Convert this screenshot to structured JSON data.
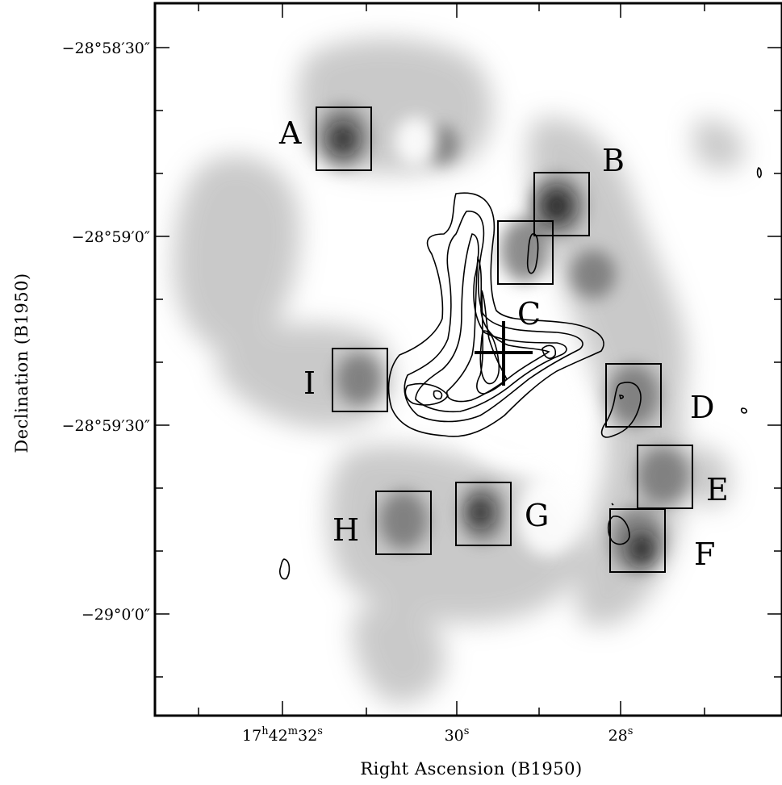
{
  "figure": {
    "y_axis_title": "Declination (B1950)",
    "x_axis_title": "Right Ascension (B1950)",
    "y_ticks": [
      "−28°58′30″",
      "−28°59′0″",
      "−28°59′30″",
      "−29°0′0″"
    ],
    "x_tick_1": {
      "main": "17",
      "h": "h",
      "mid": "42",
      "m": "m",
      "sec": "32",
      "s": "s"
    },
    "x_tick_2": {
      "sec": "30",
      "s": "s"
    },
    "x_tick_3": {
      "sec": "28",
      "s": "s"
    },
    "regions": [
      "A",
      "B",
      "C",
      "D",
      "E",
      "F",
      "G",
      "H",
      "I"
    ]
  }
}
